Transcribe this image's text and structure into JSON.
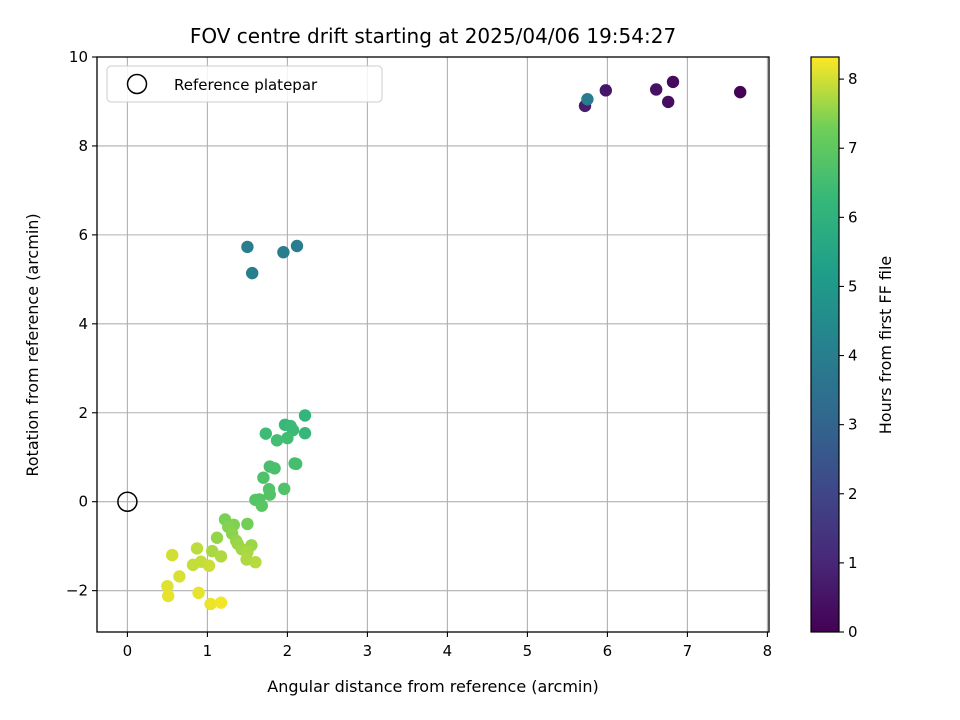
{
  "chart_data": {
    "type": "scatter",
    "title": "FOV centre drift starting at 2025/04/06 19:54:27",
    "xlabel": "Angular distance from reference (arcmin)",
    "ylabel": "Rotation from reference (arcmin)",
    "xlim": [
      -0.38,
      8.02
    ],
    "ylim": [
      -2.93,
      10.0
    ],
    "xticks": [
      0,
      1,
      2,
      3,
      4,
      5,
      6,
      7,
      8
    ],
    "yticks": [
      -2,
      0,
      2,
      4,
      6,
      8,
      10
    ],
    "xtick_labels": [
      "0",
      "1",
      "2",
      "3",
      "4",
      "5",
      "6",
      "7",
      "8"
    ],
    "ytick_labels": [
      "−2",
      "0",
      "2",
      "4",
      "6",
      "8",
      "10"
    ],
    "grid": true,
    "colormap": "viridis",
    "colorbar": {
      "label": "Hours from first FF file",
      "min": 0,
      "max": 8.32,
      "ticks": [
        0,
        1,
        2,
        3,
        4,
        5,
        6,
        7,
        8
      ],
      "tick_labels": [
        "0",
        "1",
        "2",
        "3",
        "4",
        "5",
        "6",
        "7",
        "8"
      ]
    },
    "reference_marker": {
      "x": 0,
      "y": 0,
      "label": "Reference platepar"
    },
    "legend_position": "upper-left",
    "points": [
      {
        "x": 7.66,
        "y": 9.21,
        "c": 0.05
      },
      {
        "x": 6.82,
        "y": 9.44,
        "c": 0.25
      },
      {
        "x": 6.76,
        "y": 8.99,
        "c": 0.35
      },
      {
        "x": 6.61,
        "y": 9.27,
        "c": 0.45
      },
      {
        "x": 5.98,
        "y": 9.25,
        "c": 0.6
      },
      {
        "x": 5.72,
        "y": 8.9,
        "c": 0.75
      },
      {
        "x": 5.75,
        "y": 9.05,
        "c": 3.9
      },
      {
        "x": 1.5,
        "y": 5.73,
        "c": 3.95
      },
      {
        "x": 2.12,
        "y": 5.75,
        "c": 4.0
      },
      {
        "x": 1.95,
        "y": 5.61,
        "c": 4.0
      },
      {
        "x": 1.56,
        "y": 5.14,
        "c": 4.05
      },
      {
        "x": 2.22,
        "y": 1.94,
        "c": 6.2
      },
      {
        "x": 2.22,
        "y": 1.54,
        "c": 6.25
      },
      {
        "x": 1.97,
        "y": 1.73,
        "c": 6.3
      },
      {
        "x": 2.04,
        "y": 1.7,
        "c": 6.35
      },
      {
        "x": 2.07,
        "y": 1.61,
        "c": 6.35
      },
      {
        "x": 1.73,
        "y": 1.53,
        "c": 6.4
      },
      {
        "x": 2.0,
        "y": 1.43,
        "c": 6.45
      },
      {
        "x": 1.87,
        "y": 1.38,
        "c": 6.5
      },
      {
        "x": 2.09,
        "y": 0.86,
        "c": 6.55
      },
      {
        "x": 2.11,
        "y": 0.85,
        "c": 6.55
      },
      {
        "x": 1.78,
        "y": 0.79,
        "c": 6.6
      },
      {
        "x": 1.84,
        "y": 0.75,
        "c": 6.65
      },
      {
        "x": 1.7,
        "y": 0.54,
        "c": 6.7
      },
      {
        "x": 1.77,
        "y": 0.28,
        "c": 6.75
      },
      {
        "x": 1.96,
        "y": 0.29,
        "c": 6.75
      },
      {
        "x": 1.78,
        "y": 0.16,
        "c": 6.8
      },
      {
        "x": 1.6,
        "y": 0.04,
        "c": 6.85
      },
      {
        "x": 1.65,
        "y": 0.05,
        "c": 6.85
      },
      {
        "x": 1.68,
        "y": -0.09,
        "c": 6.9
      },
      {
        "x": 1.5,
        "y": -0.5,
        "c": 7.3
      },
      {
        "x": 1.22,
        "y": -0.4,
        "c": 7.35
      },
      {
        "x": 1.33,
        "y": -0.52,
        "c": 7.4
      },
      {
        "x": 1.26,
        "y": -0.57,
        "c": 7.45
      },
      {
        "x": 1.31,
        "y": -0.72,
        "c": 7.5
      },
      {
        "x": 1.12,
        "y": -0.81,
        "c": 7.55
      },
      {
        "x": 1.36,
        "y": -0.88,
        "c": 7.55
      },
      {
        "x": 1.38,
        "y": -0.95,
        "c": 7.6
      },
      {
        "x": 1.55,
        "y": -0.98,
        "c": 7.6
      },
      {
        "x": 1.43,
        "y": -1.07,
        "c": 7.65
      },
      {
        "x": 1.5,
        "y": -1.13,
        "c": 7.7
      },
      {
        "x": 1.06,
        "y": -1.11,
        "c": 7.7
      },
      {
        "x": 1.17,
        "y": -1.23,
        "c": 7.75
      },
      {
        "x": 1.49,
        "y": -1.3,
        "c": 7.75
      },
      {
        "x": 1.6,
        "y": -1.36,
        "c": 7.8
      },
      {
        "x": 0.87,
        "y": -1.05,
        "c": 7.85
      },
      {
        "x": 0.92,
        "y": -1.35,
        "c": 7.9
      },
      {
        "x": 0.82,
        "y": -1.42,
        "c": 7.9
      },
      {
        "x": 1.02,
        "y": -1.44,
        "c": 7.95
      },
      {
        "x": 0.56,
        "y": -1.2,
        "c": 8.0
      },
      {
        "x": 0.65,
        "y": -1.68,
        "c": 8.05
      },
      {
        "x": 0.5,
        "y": -1.9,
        "c": 8.1
      },
      {
        "x": 0.51,
        "y": -2.12,
        "c": 8.15
      },
      {
        "x": 0.89,
        "y": -2.05,
        "c": 8.15
      },
      {
        "x": 1.04,
        "y": -2.3,
        "c": 8.2
      },
      {
        "x": 1.17,
        "y": -2.27,
        "c": 8.25
      }
    ]
  }
}
